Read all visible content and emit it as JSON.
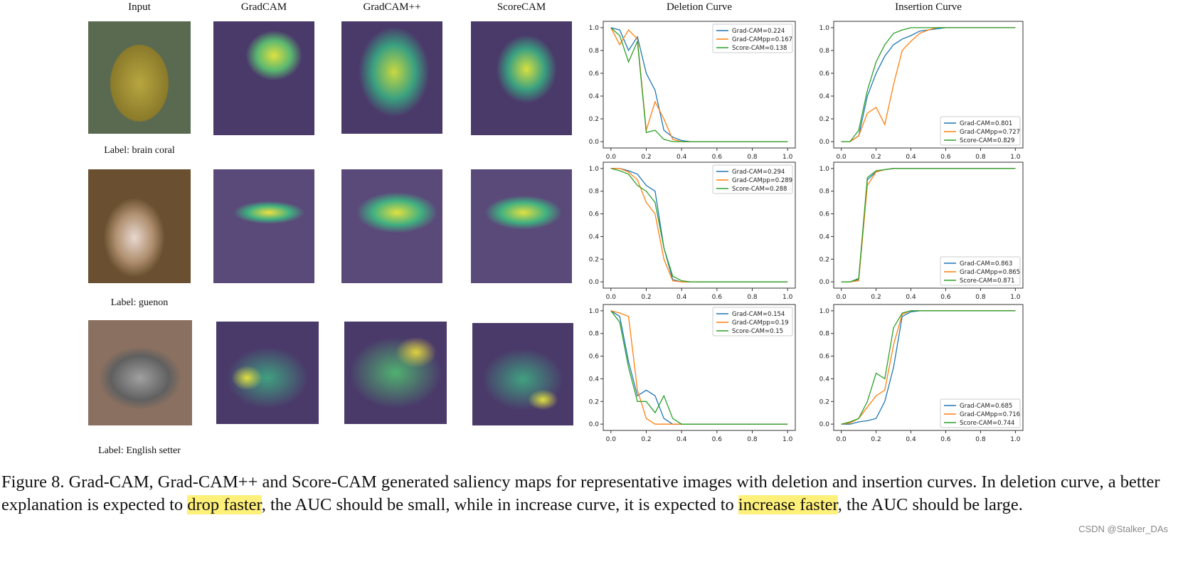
{
  "columns": [
    "Input",
    "GradCAM",
    "GradCAM++",
    "ScoreCAM",
    "Deletion Curve",
    "Insertion Curve"
  ],
  "rows": [
    {
      "label": "Label: brain coral"
    },
    {
      "label": "Label: guenon"
    },
    {
      "label": "Label: English setter"
    }
  ],
  "colors": {
    "grad_cam": "#1f77b4",
    "grad_campp": "#ff7f0e",
    "score_cam": "#2ca02c"
  },
  "chart_data": [
    {
      "type": "line",
      "row": 1,
      "curve": "deletion",
      "x": [
        0,
        0.05,
        0.1,
        0.15,
        0.2,
        0.25,
        0.3,
        0.35,
        0.4,
        0.45,
        0.5,
        0.55,
        0.6,
        0.65,
        0.7,
        0.75,
        0.8,
        0.85,
        0.9,
        0.95,
        1.0
      ],
      "xlim": [
        0,
        1
      ],
      "ylim": [
        0,
        1
      ],
      "xticks": [
        "0.0",
        "0.2",
        "0.4",
        "0.6",
        "0.8",
        "1.0"
      ],
      "yticks": [
        "0.0",
        "0.2",
        "0.4",
        "0.6",
        "0.8",
        "1.0"
      ],
      "legend": "top-right",
      "series": [
        {
          "name": "Grad-CAM=0.224",
          "values": [
            1,
            0.98,
            0.8,
            0.92,
            0.6,
            0.45,
            0.1,
            0.04,
            0.01,
            0,
            0,
            0,
            0,
            0,
            0,
            0,
            0,
            0,
            0,
            0,
            0
          ]
        },
        {
          "name": "Grad-CAMpp=0.167",
          "values": [
            1,
            0.85,
            0.98,
            0.9,
            0.1,
            0.35,
            0.2,
            0.02,
            0,
            0,
            0,
            0,
            0,
            0,
            0,
            0,
            0,
            0,
            0,
            0,
            0
          ]
        },
        {
          "name": "Score-CAM=0.138",
          "values": [
            1,
            0.93,
            0.7,
            0.88,
            0.08,
            0.1,
            0.02,
            0,
            0,
            0,
            0,
            0,
            0,
            0,
            0,
            0,
            0,
            0,
            0,
            0,
            0
          ]
        }
      ]
    },
    {
      "type": "line",
      "row": 1,
      "curve": "insertion",
      "x": [
        0,
        0.05,
        0.1,
        0.15,
        0.2,
        0.25,
        0.3,
        0.35,
        0.4,
        0.45,
        0.5,
        0.55,
        0.6,
        0.65,
        0.7,
        0.75,
        0.8,
        0.85,
        0.9,
        0.95,
        1.0
      ],
      "xlim": [
        0,
        1
      ],
      "ylim": [
        0,
        1
      ],
      "xticks": [
        "0.0",
        "0.2",
        "0.4",
        "0.6",
        "0.8",
        "1.0"
      ],
      "yticks": [
        "0.0",
        "0.2",
        "0.4",
        "0.6",
        "0.8",
        "1.0"
      ],
      "legend": "bottom-right",
      "series": [
        {
          "name": "Grad-CAM=0.801",
          "values": [
            0,
            0,
            0.05,
            0.4,
            0.6,
            0.75,
            0.85,
            0.9,
            0.93,
            0.97,
            0.98,
            0.99,
            1,
            1,
            1,
            1,
            1,
            1,
            1,
            1,
            1
          ]
        },
        {
          "name": "Grad-CAMpp=0.727",
          "values": [
            0,
            0,
            0.05,
            0.25,
            0.3,
            0.15,
            0.5,
            0.8,
            0.88,
            0.95,
            0.98,
            1,
            1,
            1,
            1,
            1,
            1,
            1,
            1,
            1,
            1
          ]
        },
        {
          "name": "Score-CAM=0.829",
          "values": [
            0,
            0,
            0.1,
            0.45,
            0.7,
            0.85,
            0.95,
            0.98,
            1,
            1,
            1,
            1,
            1,
            1,
            1,
            1,
            1,
            1,
            1,
            1,
            1
          ]
        }
      ]
    },
    {
      "type": "line",
      "row": 2,
      "curve": "deletion",
      "x": [
        0,
        0.05,
        0.1,
        0.15,
        0.2,
        0.25,
        0.3,
        0.35,
        0.4,
        0.45,
        0.5,
        0.55,
        0.6,
        0.65,
        0.7,
        0.75,
        0.8,
        0.85,
        0.9,
        0.95,
        1.0
      ],
      "xlim": [
        0,
        1
      ],
      "ylim": [
        0,
        1
      ],
      "xticks": [
        "0.0",
        "0.2",
        "0.4",
        "0.6",
        "0.8",
        "1.0"
      ],
      "yticks": [
        "0.0",
        "0.2",
        "0.4",
        "0.6",
        "0.8",
        "1.0"
      ],
      "legend": "top-right",
      "series": [
        {
          "name": "Grad-CAM=0.294",
          "values": [
            1,
            1,
            0.98,
            0.95,
            0.85,
            0.8,
            0.3,
            0.02,
            0,
            0,
            0,
            0,
            0,
            0,
            0,
            0,
            0,
            0,
            0,
            0,
            0
          ]
        },
        {
          "name": "Grad-CAMpp=0.289",
          "values": [
            1,
            1,
            0.97,
            0.9,
            0.7,
            0.6,
            0.2,
            0.01,
            0,
            0,
            0,
            0,
            0,
            0,
            0,
            0,
            0,
            0,
            0,
            0,
            0
          ]
        },
        {
          "name": "Score-CAM=0.288",
          "values": [
            1,
            0.98,
            0.95,
            0.85,
            0.8,
            0.7,
            0.3,
            0.05,
            0.01,
            0,
            0,
            0,
            0,
            0,
            0,
            0,
            0,
            0,
            0,
            0,
            0
          ]
        }
      ]
    },
    {
      "type": "line",
      "row": 2,
      "curve": "insertion",
      "x": [
        0,
        0.05,
        0.1,
        0.15,
        0.2,
        0.25,
        0.3,
        0.35,
        0.4,
        0.45,
        0.5,
        0.55,
        0.6,
        0.65,
        0.7,
        0.75,
        0.8,
        0.85,
        0.9,
        0.95,
        1.0
      ],
      "xlim": [
        0,
        1
      ],
      "ylim": [
        0,
        1
      ],
      "xticks": [
        "0.0",
        "0.2",
        "0.4",
        "0.6",
        "0.8",
        "1.0"
      ],
      "yticks": [
        "0.0",
        "0.2",
        "0.4",
        "0.6",
        "0.8",
        "1.0"
      ],
      "legend": "bottom-right",
      "series": [
        {
          "name": "Grad-CAM=0.863",
          "values": [
            0,
            0,
            0.02,
            0.9,
            0.97,
            0.99,
            1,
            1,
            1,
            1,
            1,
            1,
            1,
            1,
            1,
            1,
            1,
            1,
            1,
            1,
            1
          ]
        },
        {
          "name": "Grad-CAMpp=0.865",
          "values": [
            0,
            0,
            0.01,
            0.85,
            0.97,
            0.99,
            1,
            1,
            1,
            1,
            1,
            1,
            1,
            1,
            1,
            1,
            1,
            1,
            1,
            1,
            1
          ]
        },
        {
          "name": "Score-CAM=0.871",
          "values": [
            0,
            0,
            0.03,
            0.92,
            0.98,
            0.99,
            1,
            1,
            1,
            1,
            1,
            1,
            1,
            1,
            1,
            1,
            1,
            1,
            1,
            1,
            1
          ]
        }
      ]
    },
    {
      "type": "line",
      "row": 3,
      "curve": "deletion",
      "x": [
        0,
        0.05,
        0.1,
        0.15,
        0.2,
        0.25,
        0.3,
        0.35,
        0.4,
        0.45,
        0.5,
        0.55,
        0.6,
        0.65,
        0.7,
        0.75,
        0.8,
        0.85,
        0.9,
        0.95,
        1.0
      ],
      "xlim": [
        0,
        1
      ],
      "ylim": [
        0,
        1
      ],
      "xticks": [
        "0.0",
        "0.2",
        "0.4",
        "0.6",
        "0.8",
        "1.0"
      ],
      "yticks": [
        "0.0",
        "0.2",
        "0.4",
        "0.6",
        "0.8",
        "1.0"
      ],
      "legend": "top-right",
      "series": [
        {
          "name": "Grad-CAM=0.154",
          "values": [
            1,
            0.95,
            0.55,
            0.25,
            0.3,
            0.25,
            0.05,
            0,
            0,
            0,
            0,
            0,
            0,
            0,
            0,
            0,
            0,
            0,
            0,
            0,
            0
          ]
        },
        {
          "name": "Grad-CAMpp=0.19",
          "values": [
            1,
            0.98,
            0.95,
            0.3,
            0.05,
            0,
            0,
            0,
            0,
            0,
            0,
            0,
            0,
            0,
            0,
            0,
            0,
            0,
            0,
            0,
            0
          ]
        },
        {
          "name": "Score-CAM=0.15",
          "values": [
            1,
            0.9,
            0.5,
            0.2,
            0.2,
            0.1,
            0.25,
            0.05,
            0,
            0,
            0,
            0,
            0,
            0,
            0,
            0,
            0,
            0,
            0,
            0,
            0
          ]
        }
      ]
    },
    {
      "type": "line",
      "row": 3,
      "curve": "insertion",
      "x": [
        0,
        0.05,
        0.1,
        0.15,
        0.2,
        0.25,
        0.3,
        0.35,
        0.4,
        0.45,
        0.5,
        0.55,
        0.6,
        0.65,
        0.7,
        0.75,
        0.8,
        0.85,
        0.9,
        0.95,
        1.0
      ],
      "xlim": [
        0,
        1
      ],
      "ylim": [
        0,
        1
      ],
      "xticks": [
        "0.0",
        "0.2",
        "0.4",
        "0.6",
        "0.8",
        "1.0"
      ],
      "yticks": [
        "0.0",
        "0.2",
        "0.4",
        "0.6",
        "0.8",
        "1.0"
      ],
      "legend": "bottom-right",
      "series": [
        {
          "name": "Grad-CAM=0.685",
          "values": [
            0,
            0,
            0.02,
            0.03,
            0.05,
            0.2,
            0.5,
            0.95,
            0.99,
            1,
            1,
            1,
            1,
            1,
            1,
            1,
            1,
            1,
            1,
            1,
            1
          ]
        },
        {
          "name": "Grad-CAMpp=0.716",
          "values": [
            0,
            0.01,
            0.05,
            0.15,
            0.25,
            0.3,
            0.7,
            0.97,
            1,
            1,
            1,
            1,
            1,
            1,
            1,
            1,
            1,
            1,
            1,
            1,
            1
          ]
        },
        {
          "name": "Score-CAM=0.744",
          "values": [
            0,
            0.02,
            0.05,
            0.2,
            0.45,
            0.4,
            0.85,
            0.98,
            1,
            1,
            1,
            1,
            1,
            1,
            1,
            1,
            1,
            1,
            1,
            1,
            1
          ]
        }
      ]
    }
  ],
  "caption": {
    "p1": "Figure 8. Grad-CAM, Grad-CAM++ and Score-CAM generated saliency maps for representative images with deletion and insertion curves. In deletion curve, a better explanation is expected to ",
    "h1": "drop faster",
    "p2": ", the AUC should be small, while in increase curve, it is expected to ",
    "h2": "increase faster",
    "p3": ", the AUC should be large."
  },
  "watermark": "CSDN @Stalker_DAs"
}
